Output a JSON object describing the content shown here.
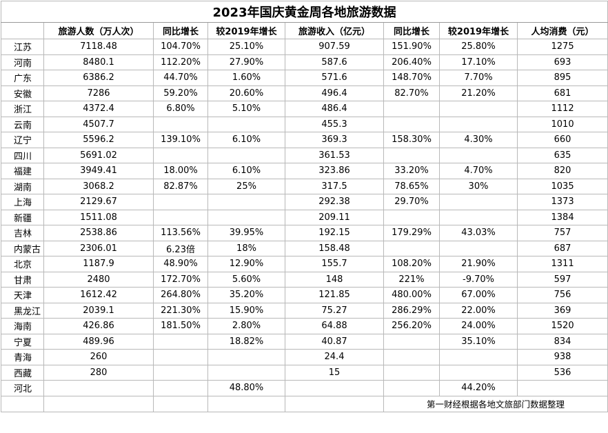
{
  "title": "2023年国庆黄金周各地旅游数据",
  "table": {
    "header": [
      null,
      "旅游人数（万人次）",
      "同比增长",
      "较2019年增长",
      "旅游收入（亿元）",
      "同比增长",
      "较2019年增长",
      "人均消费（元）"
    ],
    "rows": [
      [
        "江苏",
        "7118.48",
        "104.70%",
        "25.10%",
        "907.59",
        "151.90%",
        "25.80%",
        "1275"
      ],
      [
        "河南",
        "8480.1",
        "112.20%",
        "27.90%",
        "587.6",
        "206.40%",
        "17.10%",
        "693"
      ],
      [
        "广东",
        "6386.2",
        "44.70%",
        "1.60%",
        "571.6",
        "148.70%",
        "7.70%",
        "895"
      ],
      [
        "安徽",
        "7286",
        "59.20%",
        "20.60%",
        "496.4",
        "82.70%",
        "21.20%",
        "681"
      ],
      [
        "浙江",
        "4372.4",
        "6.80%",
        "5.10%",
        "486.4",
        null,
        null,
        "1112"
      ],
      [
        "云南",
        "4507.7",
        null,
        null,
        "455.3",
        null,
        null,
        "1010"
      ],
      [
        "辽宁",
        "5596.2",
        "139.10%",
        "6.10%",
        "369.3",
        "158.30%",
        "4.30%",
        "660"
      ],
      [
        "四川",
        "5691.02",
        null,
        null,
        "361.53",
        null,
        null,
        "635"
      ],
      [
        "福建",
        "3949.41",
        "18.00%",
        "6.10%",
        "323.86",
        "33.20%",
        "4.70%",
        "820"
      ],
      [
        "湖南",
        "3068.2",
        "82.87%",
        "25%",
        "317.5",
        "78.65%",
        "30%",
        "1035"
      ],
      [
        "上海",
        "2129.67",
        null,
        null,
        "292.38",
        "29.70%",
        null,
        "1373"
      ],
      [
        "新疆",
        "1511.08",
        null,
        null,
        "209.11",
        null,
        null,
        "1384"
      ],
      [
        "吉林",
        "2538.86",
        "113.56%",
        "39.95%",
        "192.15",
        "179.29%",
        "43.03%",
        "757"
      ],
      [
        "内蒙古",
        "2306.01",
        "6.23倍",
        "18%",
        "158.48",
        null,
        null,
        "687"
      ],
      [
        "北京",
        "1187.9",
        "48.90%",
        "12.90%",
        "155.7",
        "108.20%",
        "21.90%",
        "1311"
      ],
      [
        "甘肃",
        "2480",
        "172.70%",
        "5.60%",
        "148",
        "221%",
        "-9.70%",
        "597"
      ],
      [
        "天津",
        "1612.42",
        "264.80%",
        "35.20%",
        "121.85",
        "480.00%",
        "67.00%",
        "756"
      ],
      [
        "黑龙江",
        "2039.1",
        "221.30%",
        "15.90%",
        "75.27",
        "286.29%",
        "22.00%",
        "369"
      ],
      [
        "海南",
        "426.86",
        "181.50%",
        "2.80%",
        "64.88",
        "256.20%",
        "24.00%",
        "1520"
      ],
      [
        "宁夏",
        "489.96",
        null,
        "18.82%",
        "40.87",
        null,
        "35.10%",
        "834"
      ],
      [
        "青海",
        "260",
        null,
        null,
        "24.4",
        null,
        null,
        "938"
      ],
      [
        "西藏",
        "280",
        null,
        null,
        "15",
        null,
        null,
        "536"
      ],
      [
        "河北",
        null,
        null,
        "48.80%",
        null,
        null,
        "44.20%",
        null
      ]
    ]
  },
  "source": "第一财经根据各地文旅部门数据整理"
}
